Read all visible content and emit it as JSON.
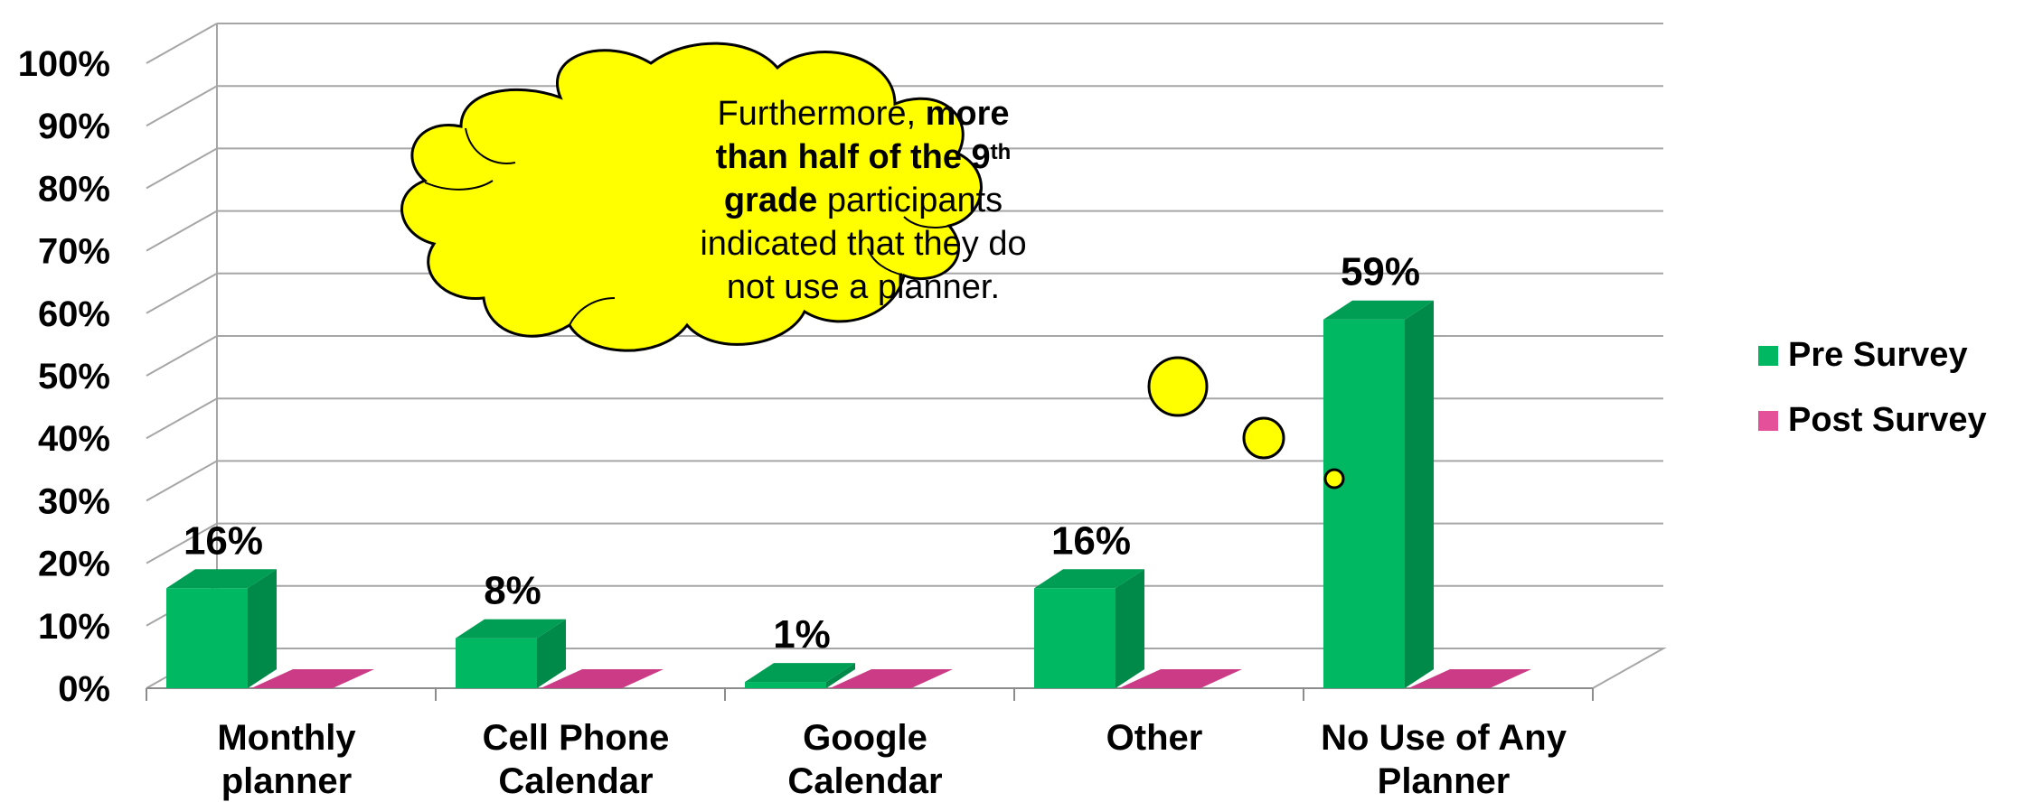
{
  "chart_data": {
    "type": "bar",
    "categories": [
      [
        "Monthly",
        "planner"
      ],
      [
        "Cell Phone",
        "Calendar"
      ],
      [
        "Google",
        "Calendar"
      ],
      [
        "Other"
      ],
      [
        "No Use of Any",
        "Planner"
      ]
    ],
    "series": [
      {
        "name": "Pre Survey",
        "values": [
          16,
          8,
          1,
          16,
          59
        ],
        "color": "#00b862",
        "side_color": "#008a49",
        "top_color": "#009d55"
      },
      {
        "name": "Post Survey",
        "values": [
          0,
          0,
          0,
          0,
          0
        ],
        "color": "#e5509a",
        "side_color": "#b83878",
        "top_color": "#cc3c86"
      }
    ],
    "data_labels": [
      "16%",
      "8%",
      "1%",
      "16%",
      "59%"
    ],
    "ylim": [
      0,
      100
    ],
    "y_ticks": [
      "0%",
      "10%",
      "20%",
      "30%",
      "40%",
      "50%",
      "60%",
      "70%",
      "80%",
      "90%",
      "100%"
    ],
    "grid": true,
    "three_d": true,
    "legend_position": "right",
    "annotation": {
      "type": "thought-cloud",
      "fill": "#ffff00",
      "lines": [
        [
          {
            "t": "Furthermore, ",
            "b": false
          },
          {
            "t": "more",
            "b": true
          }
        ],
        [
          {
            "t": "than half of the 9",
            "b": true
          },
          {
            "t": "th",
            "b": true,
            "sup": true
          }
        ],
        [
          {
            "t": "grade",
            "b": true
          },
          {
            "t": " participants",
            "b": false
          }
        ],
        [
          {
            "t": "indicated that they do",
            "b": false
          }
        ],
        [
          {
            "t": "not use a planner.",
            "b": false
          }
        ]
      ]
    }
  }
}
